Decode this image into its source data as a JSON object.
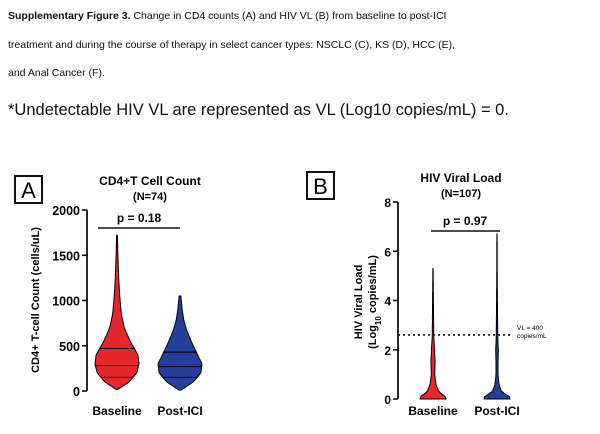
{
  "caption": {
    "line1_bold": "Supplementary Figure 3.",
    "line1_rest": " Change in CD4 counts (A) and HIV VL (B) from baseline to post-ICI",
    "line2": "treatment and during the course of therapy in select cancer types: NSCLC (C), KS (D), HCC (E),",
    "line3": "and Anal Cancer (F)."
  },
  "note": "*Undetectable HIV VL are represented as VL (Log10 copies/mL) = 0.",
  "colors": {
    "baseline": "#e8262d",
    "post": "#243e9a",
    "axis": "#111111"
  },
  "chart_data": [
    {
      "panel_label": "A",
      "type": "violin",
      "title": "CD4+T Cell Count",
      "subtitle": "(N=74)",
      "xlabel": "",
      "ylabel": "CD4+ T-cell Count (cells/uL)",
      "ylim": [
        0,
        2000
      ],
      "yticks": [
        0,
        500,
        1000,
        1500,
        2000
      ],
      "ytick_labels": [
        "0",
        "500",
        "1000",
        "1500",
        "2000"
      ],
      "categories": [
        "Baseline",
        "Post-ICI"
      ],
      "pvalue": "p = 0.18",
      "series": [
        {
          "name": "Baseline",
          "color": "#e8262d",
          "density": [
            [
              20,
              0.05
            ],
            [
              100,
              0.55
            ],
            [
              200,
              0.9
            ],
            [
              300,
              1.0
            ],
            [
              400,
              0.95
            ],
            [
              550,
              0.6
            ],
            [
              700,
              0.33
            ],
            [
              850,
              0.2
            ],
            [
              1000,
              0.14
            ],
            [
              1150,
              0.1
            ],
            [
              1300,
              0.07
            ],
            [
              1500,
              0.04
            ],
            [
              1720,
              0.02
            ]
          ],
          "quartiles": [
            150,
            280,
            470
          ]
        },
        {
          "name": "Post-ICI",
          "color": "#243e9a",
          "density": [
            [
              10,
              0.05
            ],
            [
              100,
              0.6
            ],
            [
              200,
              0.95
            ],
            [
              300,
              1.0
            ],
            [
              400,
              0.8
            ],
            [
              500,
              0.6
            ],
            [
              600,
              0.42
            ],
            [
              700,
              0.26
            ],
            [
              800,
              0.16
            ],
            [
              900,
              0.1
            ],
            [
              1050,
              0.04
            ]
          ],
          "quartiles": [
            150,
            270,
            430
          ]
        }
      ]
    },
    {
      "panel_label": "B",
      "type": "violin",
      "title": "HIV Viral Load",
      "subtitle": "(N=107)",
      "xlabel": "",
      "ylabel_line1": "HIV Viral Load",
      "ylabel_line2_pre": "(Log",
      "ylabel_line2_sub": "10",
      "ylabel_line2_post": " copies/mL)",
      "ylim": [
        0,
        8
      ],
      "yticks": [
        0,
        2,
        4,
        6,
        8
      ],
      "ytick_labels": [
        "0",
        "2",
        "4",
        "6",
        "8"
      ],
      "categories": [
        "Baseline",
        "Post-ICI"
      ],
      "pvalue": "p = 0.97",
      "threshold": {
        "value": 2.6,
        "label_line1": "VL = 400",
        "label_line2": "copies/mL"
      },
      "series": [
        {
          "name": "Baseline",
          "color": "#e8262d",
          "density": [
            [
              0,
              1.0
            ],
            [
              0.1,
              0.95
            ],
            [
              0.3,
              0.45
            ],
            [
              0.6,
              0.22
            ],
            [
              1.0,
              0.13
            ],
            [
              1.5,
              0.16
            ],
            [
              2.0,
              0.12
            ],
            [
              2.5,
              0.06
            ],
            [
              3.5,
              0.04
            ],
            [
              4.5,
              0.025
            ],
            [
              5.3,
              0.01
            ]
          ],
          "quartiles": []
        },
        {
          "name": "Post-ICI",
          "color": "#243e9a",
          "density": [
            [
              0,
              1.0
            ],
            [
              0.1,
              0.95
            ],
            [
              0.3,
              0.35
            ],
            [
              0.6,
              0.15
            ],
            [
              1.0,
              0.08
            ],
            [
              1.5,
              0.08
            ],
            [
              2.0,
              0.1
            ],
            [
              2.5,
              0.06
            ],
            [
              3.5,
              0.04
            ],
            [
              5.0,
              0.02
            ],
            [
              6.7,
              0.01
            ]
          ],
          "quartiles": []
        }
      ]
    }
  ]
}
